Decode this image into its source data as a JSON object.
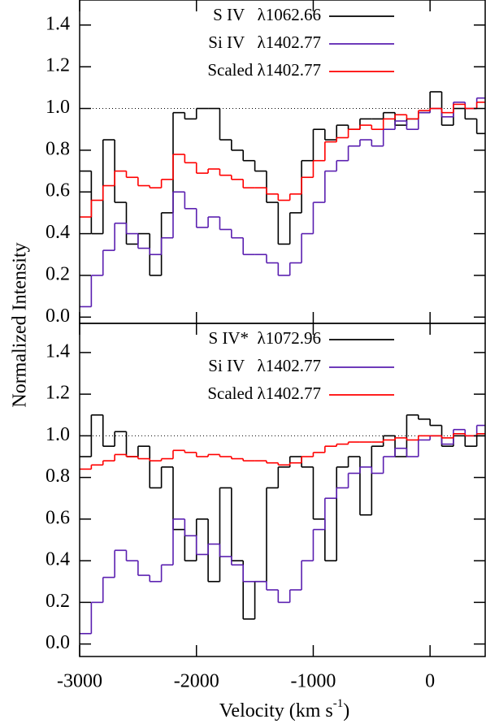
{
  "chart_data": [
    {
      "type": "step",
      "ylabel": "Normalized Intensity",
      "x": [
        -3000,
        -2900,
        -2800,
        -2700,
        -2600,
        -2500,
        -2400,
        -2300,
        -2200,
        -2100,
        -2000,
        -1900,
        -1800,
        -1700,
        -1600,
        -1500,
        -1400,
        -1300,
        -1200,
        -1100,
        -1000,
        -900,
        -800,
        -700,
        -600,
        -500,
        -400,
        -300,
        -200,
        -100,
        0,
        100,
        200,
        300,
        400,
        500
      ],
      "series": [
        {
          "name": "S IV   λ1062.66",
          "color": "#000000",
          "values": [
            0.7,
            0.4,
            0.85,
            0.55,
            0.35,
            0.4,
            0.2,
            0.5,
            0.98,
            0.95,
            1.0,
            1.0,
            0.85,
            0.8,
            0.75,
            0.7,
            0.55,
            0.35,
            0.5,
            0.75,
            0.9,
            0.85,
            0.92,
            0.9,
            0.95,
            0.95,
            0.98,
            0.92,
            0.95,
            0.98,
            1.08,
            0.92,
            1.0,
            0.95,
            0.88,
            0.85
          ]
        },
        {
          "name": "Si IV   λ1402.77",
          "color": "#5a1fb0",
          "values": [
            0.05,
            0.2,
            0.32,
            0.45,
            0.4,
            0.33,
            0.3,
            0.38,
            0.6,
            0.52,
            0.43,
            0.48,
            0.42,
            0.38,
            0.3,
            0.3,
            0.26,
            0.2,
            0.26,
            0.4,
            0.55,
            0.7,
            0.75,
            0.82,
            0.85,
            0.82,
            0.9,
            0.94,
            0.9,
            0.98,
            1.0,
            0.96,
            1.03,
            1.0,
            1.05,
            1.0
          ]
        },
        {
          "name": "Scaled λ1402.77",
          "color": "#ff0000",
          "values": [
            0.48,
            0.56,
            0.63,
            0.7,
            0.67,
            0.63,
            0.62,
            0.66,
            0.78,
            0.74,
            0.69,
            0.71,
            0.68,
            0.66,
            0.62,
            0.62,
            0.59,
            0.56,
            0.59,
            0.67,
            0.75,
            0.84,
            0.86,
            0.9,
            0.92,
            0.9,
            0.95,
            0.97,
            0.95,
            0.99,
            1.0,
            0.98,
            1.02,
            1.0,
            1.03,
            1.0
          ]
        }
      ],
      "hline": 1,
      "xlim": [
        -3000,
        472
      ],
      "ylim": [
        -0.03,
        1.52
      ],
      "xticks": [
        -3000,
        -2000,
        -1000,
        0
      ],
      "yticks": [
        {
          "value": 0,
          "label": "0.0"
        },
        0.2,
        0.4,
        0.6,
        0.8,
        {
          "value": 1,
          "label": "1.0"
        },
        1.2,
        1.4
      ],
      "legend": "top-right"
    },
    {
      "type": "step",
      "xlabel": [
        "Velocity (km s",
        "-1",
        ")"
      ],
      "x": [
        -3000,
        -2900,
        -2800,
        -2700,
        -2600,
        -2500,
        -2400,
        -2300,
        -2200,
        -2100,
        -2000,
        -1900,
        -1800,
        -1700,
        -1600,
        -1500,
        -1400,
        -1300,
        -1200,
        -1100,
        -1000,
        -900,
        -800,
        -700,
        -600,
        -500,
        -400,
        -300,
        -200,
        -100,
        0,
        100,
        200,
        300,
        400,
        500
      ],
      "series": [
        {
          "name": "S IV*  λ1072.96",
          "color": "#000000",
          "values": [
            0.9,
            1.1,
            0.95,
            1.02,
            0.9,
            0.95,
            0.75,
            0.85,
            0.55,
            0.4,
            0.6,
            0.3,
            0.75,
            0.4,
            0.12,
            0.3,
            0.75,
            0.85,
            0.9,
            0.85,
            0.6,
            0.4,
            0.85,
            0.9,
            0.62,
            0.95,
            1.0,
            0.9,
            1.1,
            1.08,
            1.05,
            0.95,
            1.0,
            0.95,
            1.0,
            0.9
          ]
        },
        {
          "name": "Si IV   λ1402.77",
          "color": "#5a1fb0",
          "values": [
            0.05,
            0.2,
            0.32,
            0.45,
            0.4,
            0.33,
            0.3,
            0.38,
            0.6,
            0.52,
            0.43,
            0.48,
            0.42,
            0.38,
            0.3,
            0.3,
            0.26,
            0.2,
            0.26,
            0.4,
            0.55,
            0.7,
            0.75,
            0.82,
            0.85,
            0.82,
            0.9,
            0.94,
            0.9,
            0.98,
            1.0,
            0.96,
            1.03,
            1.0,
            1.05,
            1.0
          ]
        },
        {
          "name": "Scaled λ1402.77",
          "color": "#ff0000",
          "values": [
            0.84,
            0.86,
            0.88,
            0.91,
            0.9,
            0.89,
            0.88,
            0.89,
            0.93,
            0.92,
            0.9,
            0.91,
            0.9,
            0.89,
            0.88,
            0.88,
            0.87,
            0.86,
            0.87,
            0.9,
            0.92,
            0.95,
            0.96,
            0.97,
            0.97,
            0.97,
            0.98,
            0.99,
            0.98,
            1.0,
            1.0,
            0.99,
            1.01,
            1.0,
            1.01,
            1.0
          ]
        }
      ],
      "hline": 1,
      "xlim": [
        -3000,
        472
      ],
      "ylim": [
        -0.06,
        1.54
      ],
      "xticks": [
        -3000,
        -2000,
        -1000,
        0
      ],
      "yticks": [
        {
          "value": 0,
          "label": "0.0"
        },
        0.2,
        0.4,
        0.6,
        0.8,
        {
          "value": 1,
          "label": "1.0"
        },
        1.2,
        1.4
      ],
      "legend": "top-right"
    }
  ]
}
